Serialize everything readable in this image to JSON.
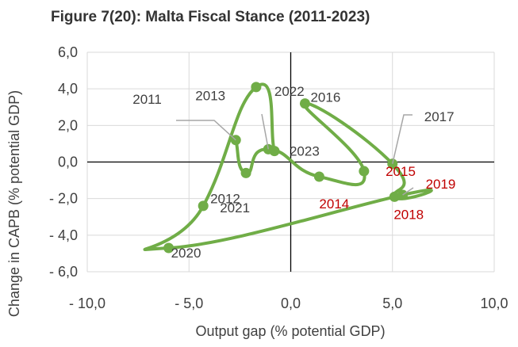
{
  "chart_data": {
    "type": "line",
    "title": "Figure 7(20): Malta Fiscal Stance (2011-2023)",
    "xlabel": "Output gap (% potential GDP)",
    "ylabel": "Change in CAPB (% potential GDP)",
    "xlim": [
      -10,
      10
    ],
    "ylim": [
      -6,
      6
    ],
    "xticks": [
      -10,
      -5,
      0,
      5,
      10
    ],
    "yticks": [
      -6,
      -4,
      -2,
      0,
      2,
      4,
      6
    ],
    "xtick_labels": [
      "- 10,0",
      "- 5,0",
      "0,0",
      "5,0",
      "10,0"
    ],
    "ytick_labels": [
      "- 6,0",
      "- 4,0",
      "- 2,0",
      "0,0",
      "2,0",
      "4,0",
      "6,0"
    ],
    "grid": true,
    "series": [
      {
        "name": "Malta fiscal stance",
        "color": "#70AD47",
        "points": [
          {
            "year": "2011",
            "x": -2.7,
            "y": 1.2,
            "label_color": "#404040",
            "leader": true
          },
          {
            "year": "2012",
            "x": -2.2,
            "y": -0.6,
            "label_color": "#404040",
            "leader": false
          },
          {
            "year": "2013",
            "x": -1.1,
            "y": 0.7,
            "label_color": "#404040",
            "leader": true
          },
          {
            "year": "2014",
            "x": 1.4,
            "y": -0.8,
            "label_color": "#C00000",
            "leader": false
          },
          {
            "year": "2015",
            "x": 3.6,
            "y": -0.5,
            "label_color": "#C00000",
            "leader": false
          },
          {
            "year": "2016",
            "x": 0.7,
            "y": 3.2,
            "label_color": "#404040",
            "leader": false
          },
          {
            "year": "2017",
            "x": 5.0,
            "y": -0.1,
            "label_color": "#404040",
            "leader": true
          },
          {
            "year": "2018",
            "x": 5.1,
            "y": -1.9,
            "label_color": "#C00000",
            "leader": false
          },
          {
            "year": "2019",
            "x": 5.5,
            "y": -1.8,
            "label_color": "#C00000",
            "leader": true
          },
          {
            "year": "2020",
            "x": -6.0,
            "y": -4.7,
            "label_color": "#404040",
            "leader": false
          },
          {
            "year": "2021",
            "x": -4.3,
            "y": -2.4,
            "label_color": "#404040",
            "leader": false
          },
          {
            "year": "2022",
            "x": -1.7,
            "y": 4.1,
            "label_color": "#404040",
            "leader": false
          },
          {
            "year": "2023",
            "x": -0.8,
            "y": 0.6,
            "label_color": "#404040",
            "leader": false
          }
        ]
      }
    ],
    "annotations": [
      "2011",
      "2012",
      "2013",
      "2014",
      "2015",
      "2016",
      "2017",
      "2018",
      "2019",
      "2020",
      "2021",
      "2022",
      "2023"
    ]
  }
}
